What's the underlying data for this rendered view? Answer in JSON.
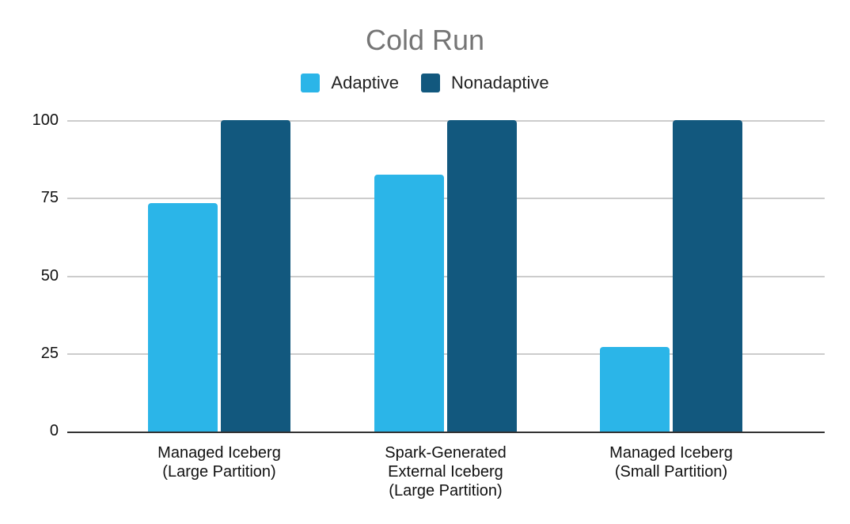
{
  "chart_data": {
    "type": "bar",
    "title": "Cold Run",
    "xlabel": "",
    "ylabel": "",
    "ylim": [
      0,
      100
    ],
    "yticks": [
      "0",
      "25",
      "50",
      "75",
      "100"
    ],
    "grid": true,
    "legend_position": "top",
    "categories": [
      "Managed Iceberg (Large Partition)",
      "Spark-Generated External Iceberg (Large Partition)",
      "Managed Iceberg (Small Partition)"
    ],
    "category_lines": [
      [
        "Managed Iceberg",
        "(Large Partition)"
      ],
      [
        "Spark-Generated",
        "External Iceberg",
        "(Large Partition)"
      ],
      [
        "Managed Iceberg",
        "(Small Partition)"
      ]
    ],
    "series": [
      {
        "name": "Adaptive",
        "color": "#2bb5e8",
        "values": [
          73.4,
          82.5,
          27.2
        ]
      },
      {
        "name": "Nonadaptive",
        "color": "#12587e",
        "values": [
          100,
          100,
          100
        ]
      }
    ]
  }
}
